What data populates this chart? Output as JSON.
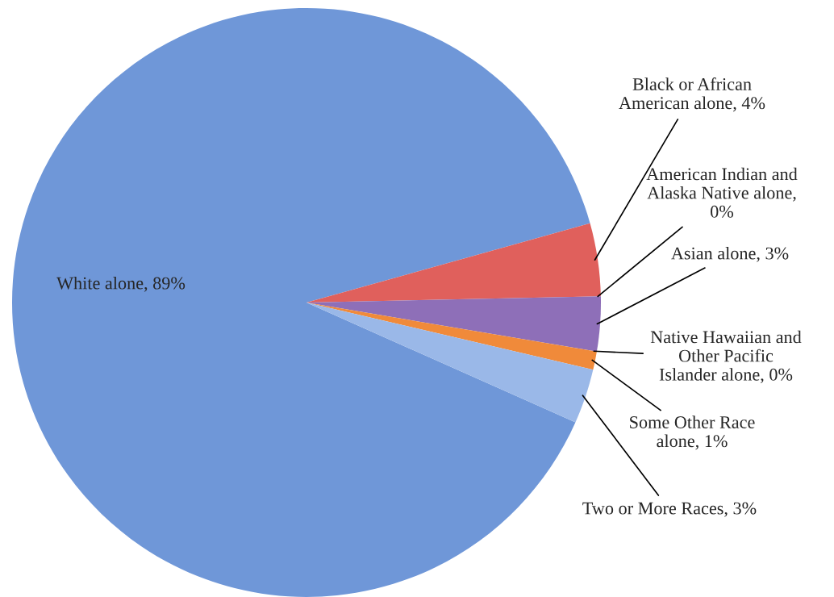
{
  "chart_data": {
    "type": "pie",
    "categories": [
      "White alone, 89%",
      "Black or African American alone, 4%",
      "American Indian and Alaska Native alone, 0%",
      "Asian alone, 3%",
      "Native Hawaiian and Other Pacific Islander alone, 0%",
      "Some Other Race alone, 1%",
      "Two or More Races, 3%"
    ],
    "values": [
      89,
      4,
      0,
      3,
      0,
      1,
      3
    ],
    "colors": [
      "#6f97d8",
      "#e0605c",
      "#9bd25a",
      "#8e6fb8",
      "#4bc0d9",
      "#f08a3a",
      "#9ab8e8"
    ]
  }
}
